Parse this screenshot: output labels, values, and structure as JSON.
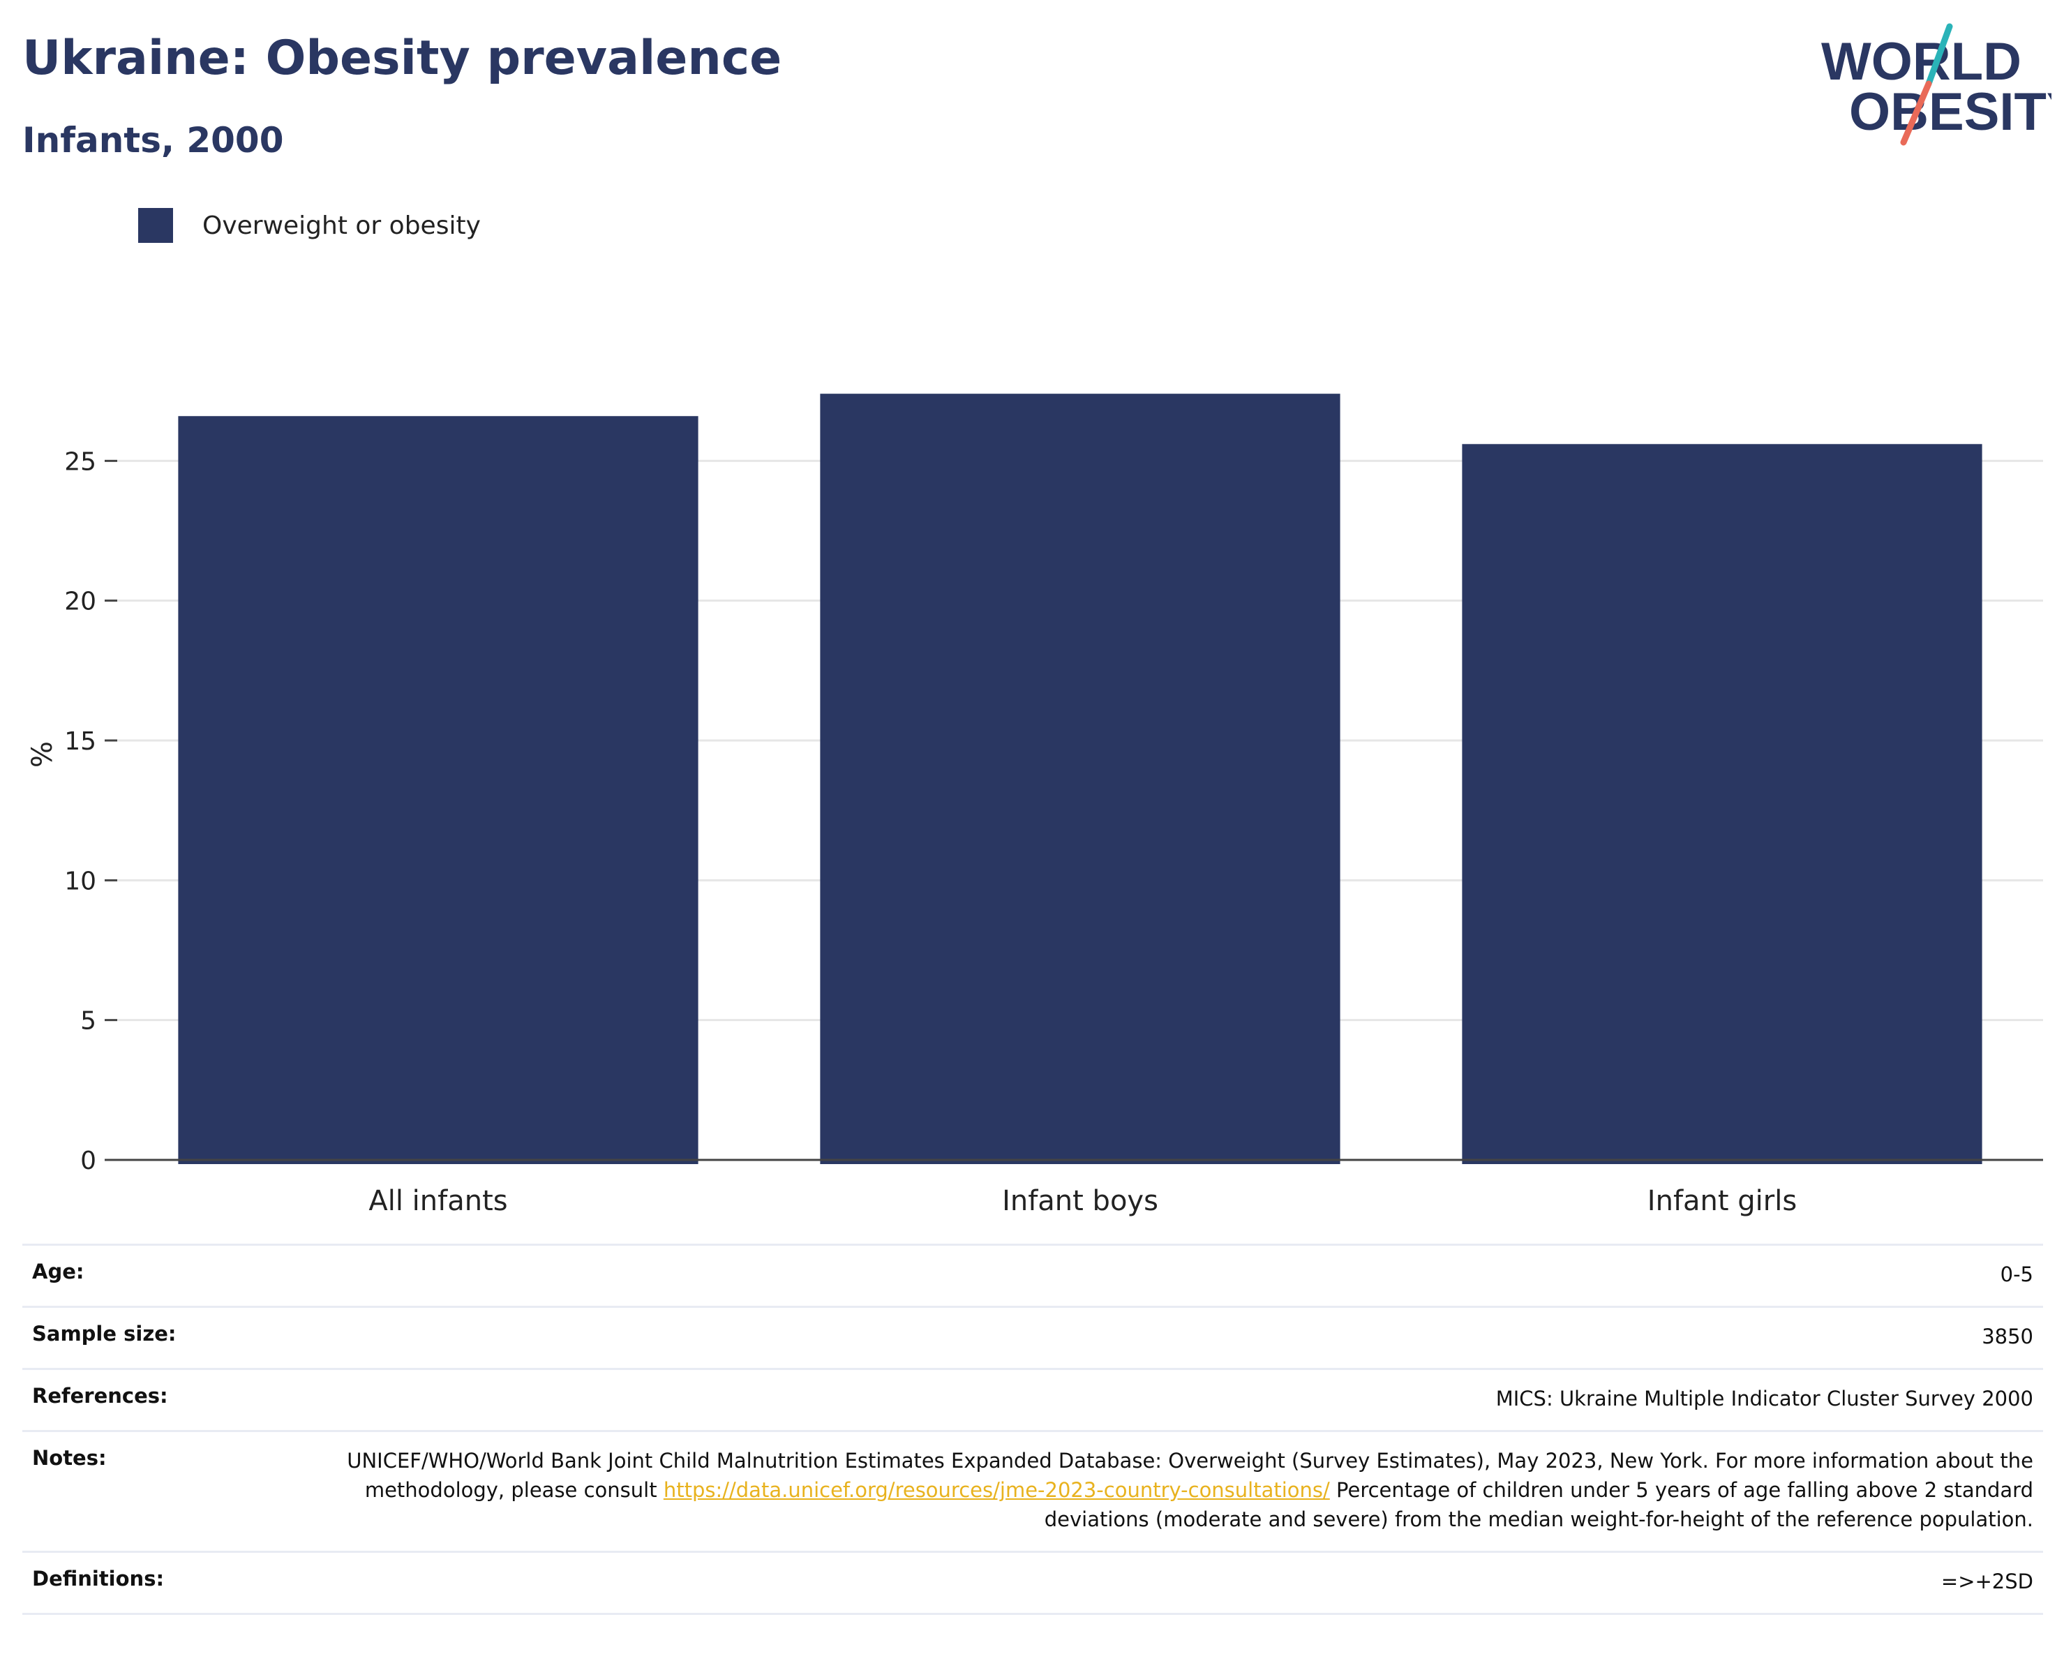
{
  "header": {
    "title": "Ukraine: Obesity prevalence",
    "subtitle": "Infants, 2000"
  },
  "logo": {
    "line1": "WORLD",
    "line2": "OBESITY",
    "colors": {
      "text": "#2a3762",
      "slash_top": "#2ab3b8",
      "slash_bottom": "#e96a58"
    }
  },
  "legend": {
    "label": "Overweight or obesity",
    "color": "#2a3762"
  },
  "chart_data": {
    "type": "bar",
    "categories": [
      "All infants",
      "Infant boys",
      "Infant girls"
    ],
    "series": [
      {
        "name": "Overweight or obesity",
        "values": [
          26.6,
          27.4,
          25.6
        ],
        "color": "#2a3762"
      }
    ],
    "ylabel": "%",
    "ylim": [
      0,
      30
    ],
    "yticks": [
      0,
      5,
      10,
      15,
      20,
      25
    ],
    "grid": true,
    "legend_position": "top-left"
  },
  "info": {
    "age": {
      "label": "Age:",
      "value": "0-5"
    },
    "sample_size": {
      "label": "Sample size:",
      "value": "3850"
    },
    "references": {
      "label": "References:",
      "value": "MICS: Ukraine Multiple Indicator Cluster Survey 2000"
    },
    "notes": {
      "label": "Notes:",
      "text_before": "UNICEF/WHO/World Bank Joint Child Malnutrition Estimates Expanded Database: Overweight (Survey Estimates), May 2023, New York. For more information about the methodology, please consult",
      "link": "https://data.unicef.org/resources/jme-2023-country-consultations/",
      "text_after": "Percentage of children under 5 years of age falling above 2 standard deviations (moderate and severe) from the median weight-for-height of the reference population."
    },
    "definitions": {
      "label": "Definitions:",
      "value": "=>+2SD"
    }
  }
}
